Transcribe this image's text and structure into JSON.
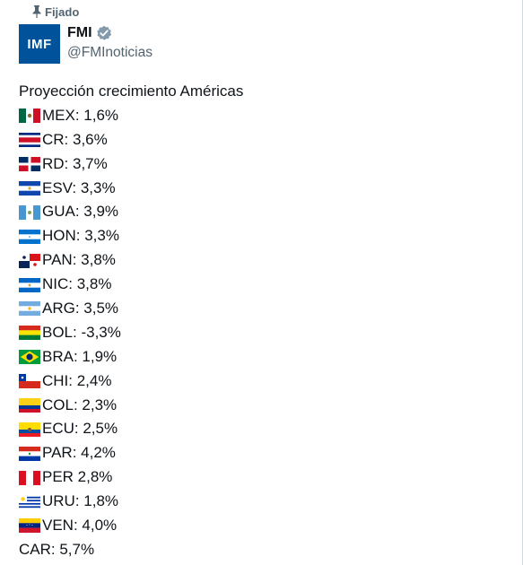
{
  "pinned_label": "Fijado",
  "author": {
    "avatar_text": "IMF",
    "name": "FMI",
    "verified": true,
    "handle": "@FMInoticias"
  },
  "tweet": {
    "title": "Proyección crecimiento Américas",
    "rows": [
      {
        "flag": "mexico-flag-icon",
        "text": "MEX: 1,6%"
      },
      {
        "flag": "costa-rica-flag-icon",
        "text": "CR: 3,6%"
      },
      {
        "flag": "dominican-republic-flag-icon",
        "text": "RD: 3,7%"
      },
      {
        "flag": "el-salvador-flag-icon",
        "text": "ESV: 3,3%"
      },
      {
        "flag": "guatemala-flag-icon",
        "text": "GUA: 3,9%"
      },
      {
        "flag": "honduras-flag-icon",
        "text": "HON: 3,3%"
      },
      {
        "flag": "panama-flag-icon",
        "text": "PAN: 3,8%"
      },
      {
        "flag": "nicaragua-flag-icon",
        "text": "NIC: 3,8%"
      },
      {
        "flag": "argentina-flag-icon",
        "text": "ARG: 3,5%"
      },
      {
        "flag": "bolivia-flag-icon",
        "text": "BOL: -3,3%"
      },
      {
        "flag": "brazil-flag-icon",
        "text": "BRA: 1,9%"
      },
      {
        "flag": "chile-flag-icon",
        "text": "CHI: 2,4%"
      },
      {
        "flag": "colombia-flag-icon",
        "text": "COL: 2,3%"
      },
      {
        "flag": "ecuador-flag-icon",
        "text": " ECU: 2,5%"
      },
      {
        "flag": "paraguay-flag-icon",
        "text": "PAR: 4,2%"
      },
      {
        "flag": "peru-flag-icon",
        "text": "PER 2,8%"
      },
      {
        "flag": "uruguay-flag-icon",
        "text": "URU: 1,8%"
      },
      {
        "flag": "venezuela-flag-icon",
        "text": "VEN: 4,0%"
      }
    ],
    "footer": "CAR: 5,7%"
  },
  "colors": {
    "text": "#0f1419",
    "secondary": "#536471",
    "verified_badge": "#829aab",
    "avatar_bg": "#00539b"
  }
}
